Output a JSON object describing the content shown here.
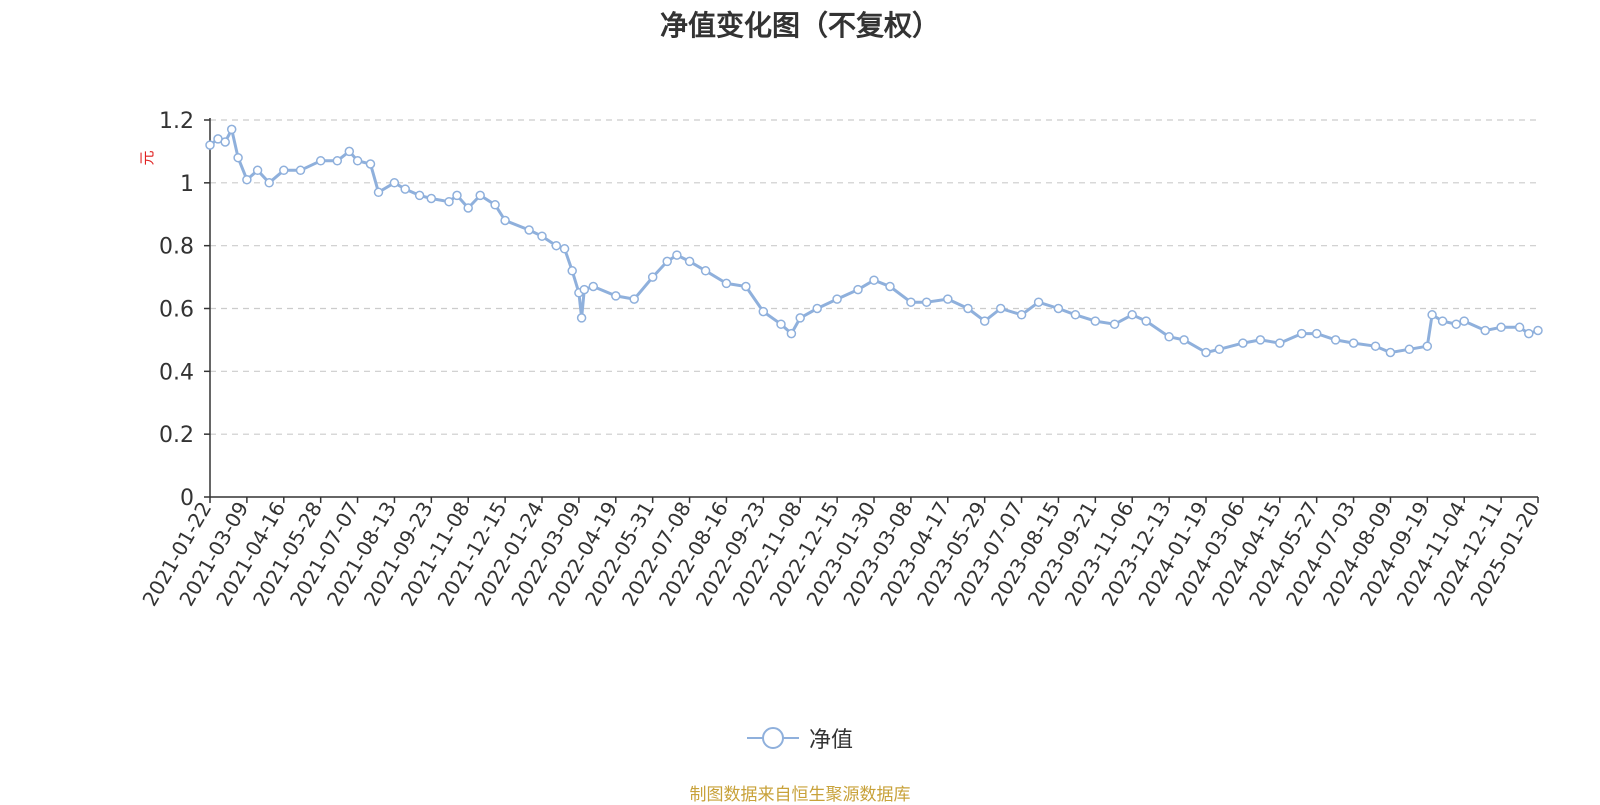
{
  "chart_data": {
    "type": "line",
    "title": "净值变化图（不复权）",
    "ylabel": "元",
    "ylim": [
      0,
      1.2
    ],
    "yticks": [
      0,
      0.2,
      0.4,
      0.6,
      0.8,
      1,
      1.2
    ],
    "ytick_labels": [
      "0",
      "0.2",
      "0.4",
      "0.6",
      "0.8",
      "1",
      "1.2"
    ],
    "grid": true,
    "legend_position": "bottom-center",
    "color": "#8fb0dc",
    "x_tick_labels": [
      "2021-01-22",
      "2021-03-09",
      "2021-04-16",
      "2021-05-28",
      "2021-07-07",
      "2021-08-13",
      "2021-09-23",
      "2021-11-08",
      "2021-12-15",
      "2022-01-24",
      "2022-03-09",
      "2022-04-19",
      "2022-05-31",
      "2022-07-08",
      "2022-08-16",
      "2022-09-23",
      "2022-11-08",
      "2022-12-15",
      "2023-01-30",
      "2023-03-08",
      "2023-04-17",
      "2023-05-29",
      "2023-07-07",
      "2023-08-15",
      "2023-09-21",
      "2023-11-06",
      "2023-12-13",
      "2024-01-19",
      "2024-03-06",
      "2024-04-15",
      "2024-05-27",
      "2024-07-03",
      "2024-08-09",
      "2024-09-19",
      "2024-11-04",
      "2024-12-11",
      "2025-01-20"
    ],
    "series": [
      {
        "name": "净值",
        "x": [
          "2021-01-22",
          "2021-02-01",
          "2021-02-10",
          "2021-02-18",
          "2021-02-26",
          "2021-03-09",
          "2021-03-20",
          "2021-04-01",
          "2021-04-16",
          "2021-05-05",
          "2021-05-28",
          "2021-06-15",
          "2021-06-28",
          "2021-07-07",
          "2021-07-20",
          "2021-07-28",
          "2021-08-13",
          "2021-08-25",
          "2021-09-10",
          "2021-09-23",
          "2021-10-15",
          "2021-10-25",
          "2021-11-08",
          "2021-11-20",
          "2021-12-05",
          "2021-12-15",
          "2022-01-10",
          "2022-01-24",
          "2022-02-10",
          "2022-02-20",
          "2022-03-01",
          "2022-03-09",
          "2022-03-12",
          "2022-03-15",
          "2022-03-25",
          "2022-04-19",
          "2022-05-10",
          "2022-05-31",
          "2022-06-15",
          "2022-06-25",
          "2022-07-08",
          "2022-07-25",
          "2022-08-16",
          "2022-09-05",
          "2022-09-23",
          "2022-10-15",
          "2022-10-28",
          "2022-11-08",
          "2022-11-25",
          "2022-12-15",
          "2023-01-10",
          "2023-01-30",
          "2023-02-15",
          "2023-03-08",
          "2023-03-25",
          "2023-04-17",
          "2023-05-10",
          "2023-05-29",
          "2023-06-15",
          "2023-07-07",
          "2023-07-25",
          "2023-08-15",
          "2023-09-01",
          "2023-09-21",
          "2023-10-15",
          "2023-11-06",
          "2023-11-20",
          "2023-12-13",
          "2023-12-28",
          "2024-01-19",
          "2024-02-05",
          "2024-03-06",
          "2024-03-25",
          "2024-04-15",
          "2024-05-10",
          "2024-05-27",
          "2024-06-15",
          "2024-07-03",
          "2024-07-25",
          "2024-08-09",
          "2024-08-30",
          "2024-09-19",
          "2024-09-25",
          "2024-10-08",
          "2024-10-25",
          "2024-11-04",
          "2024-11-25",
          "2024-12-11",
          "2024-12-31",
          "2025-01-10",
          "2025-01-20"
        ],
        "y": [
          1.12,
          1.14,
          1.13,
          1.17,
          1.08,
          1.01,
          1.04,
          1.0,
          1.04,
          1.04,
          1.07,
          1.07,
          1.1,
          1.07,
          1.06,
          0.97,
          1.0,
          0.98,
          0.96,
          0.95,
          0.94,
          0.96,
          0.92,
          0.96,
          0.93,
          0.88,
          0.85,
          0.83,
          0.8,
          0.79,
          0.72,
          0.65,
          0.57,
          0.66,
          0.67,
          0.64,
          0.63,
          0.7,
          0.75,
          0.77,
          0.75,
          0.72,
          0.68,
          0.67,
          0.59,
          0.55,
          0.52,
          0.57,
          0.6,
          0.63,
          0.66,
          0.69,
          0.67,
          0.62,
          0.62,
          0.63,
          0.6,
          0.56,
          0.6,
          0.58,
          0.62,
          0.6,
          0.58,
          0.56,
          0.55,
          0.58,
          0.56,
          0.51,
          0.5,
          0.46,
          0.47,
          0.49,
          0.5,
          0.49,
          0.52,
          0.52,
          0.5,
          0.49,
          0.48,
          0.46,
          0.47,
          0.48,
          0.58,
          0.56,
          0.55,
          0.56,
          0.53,
          0.54,
          0.54,
          0.52,
          0.53
        ]
      }
    ]
  },
  "legend": {
    "label": "净值"
  },
  "footer": "制图数据来自恒生聚源数据库"
}
